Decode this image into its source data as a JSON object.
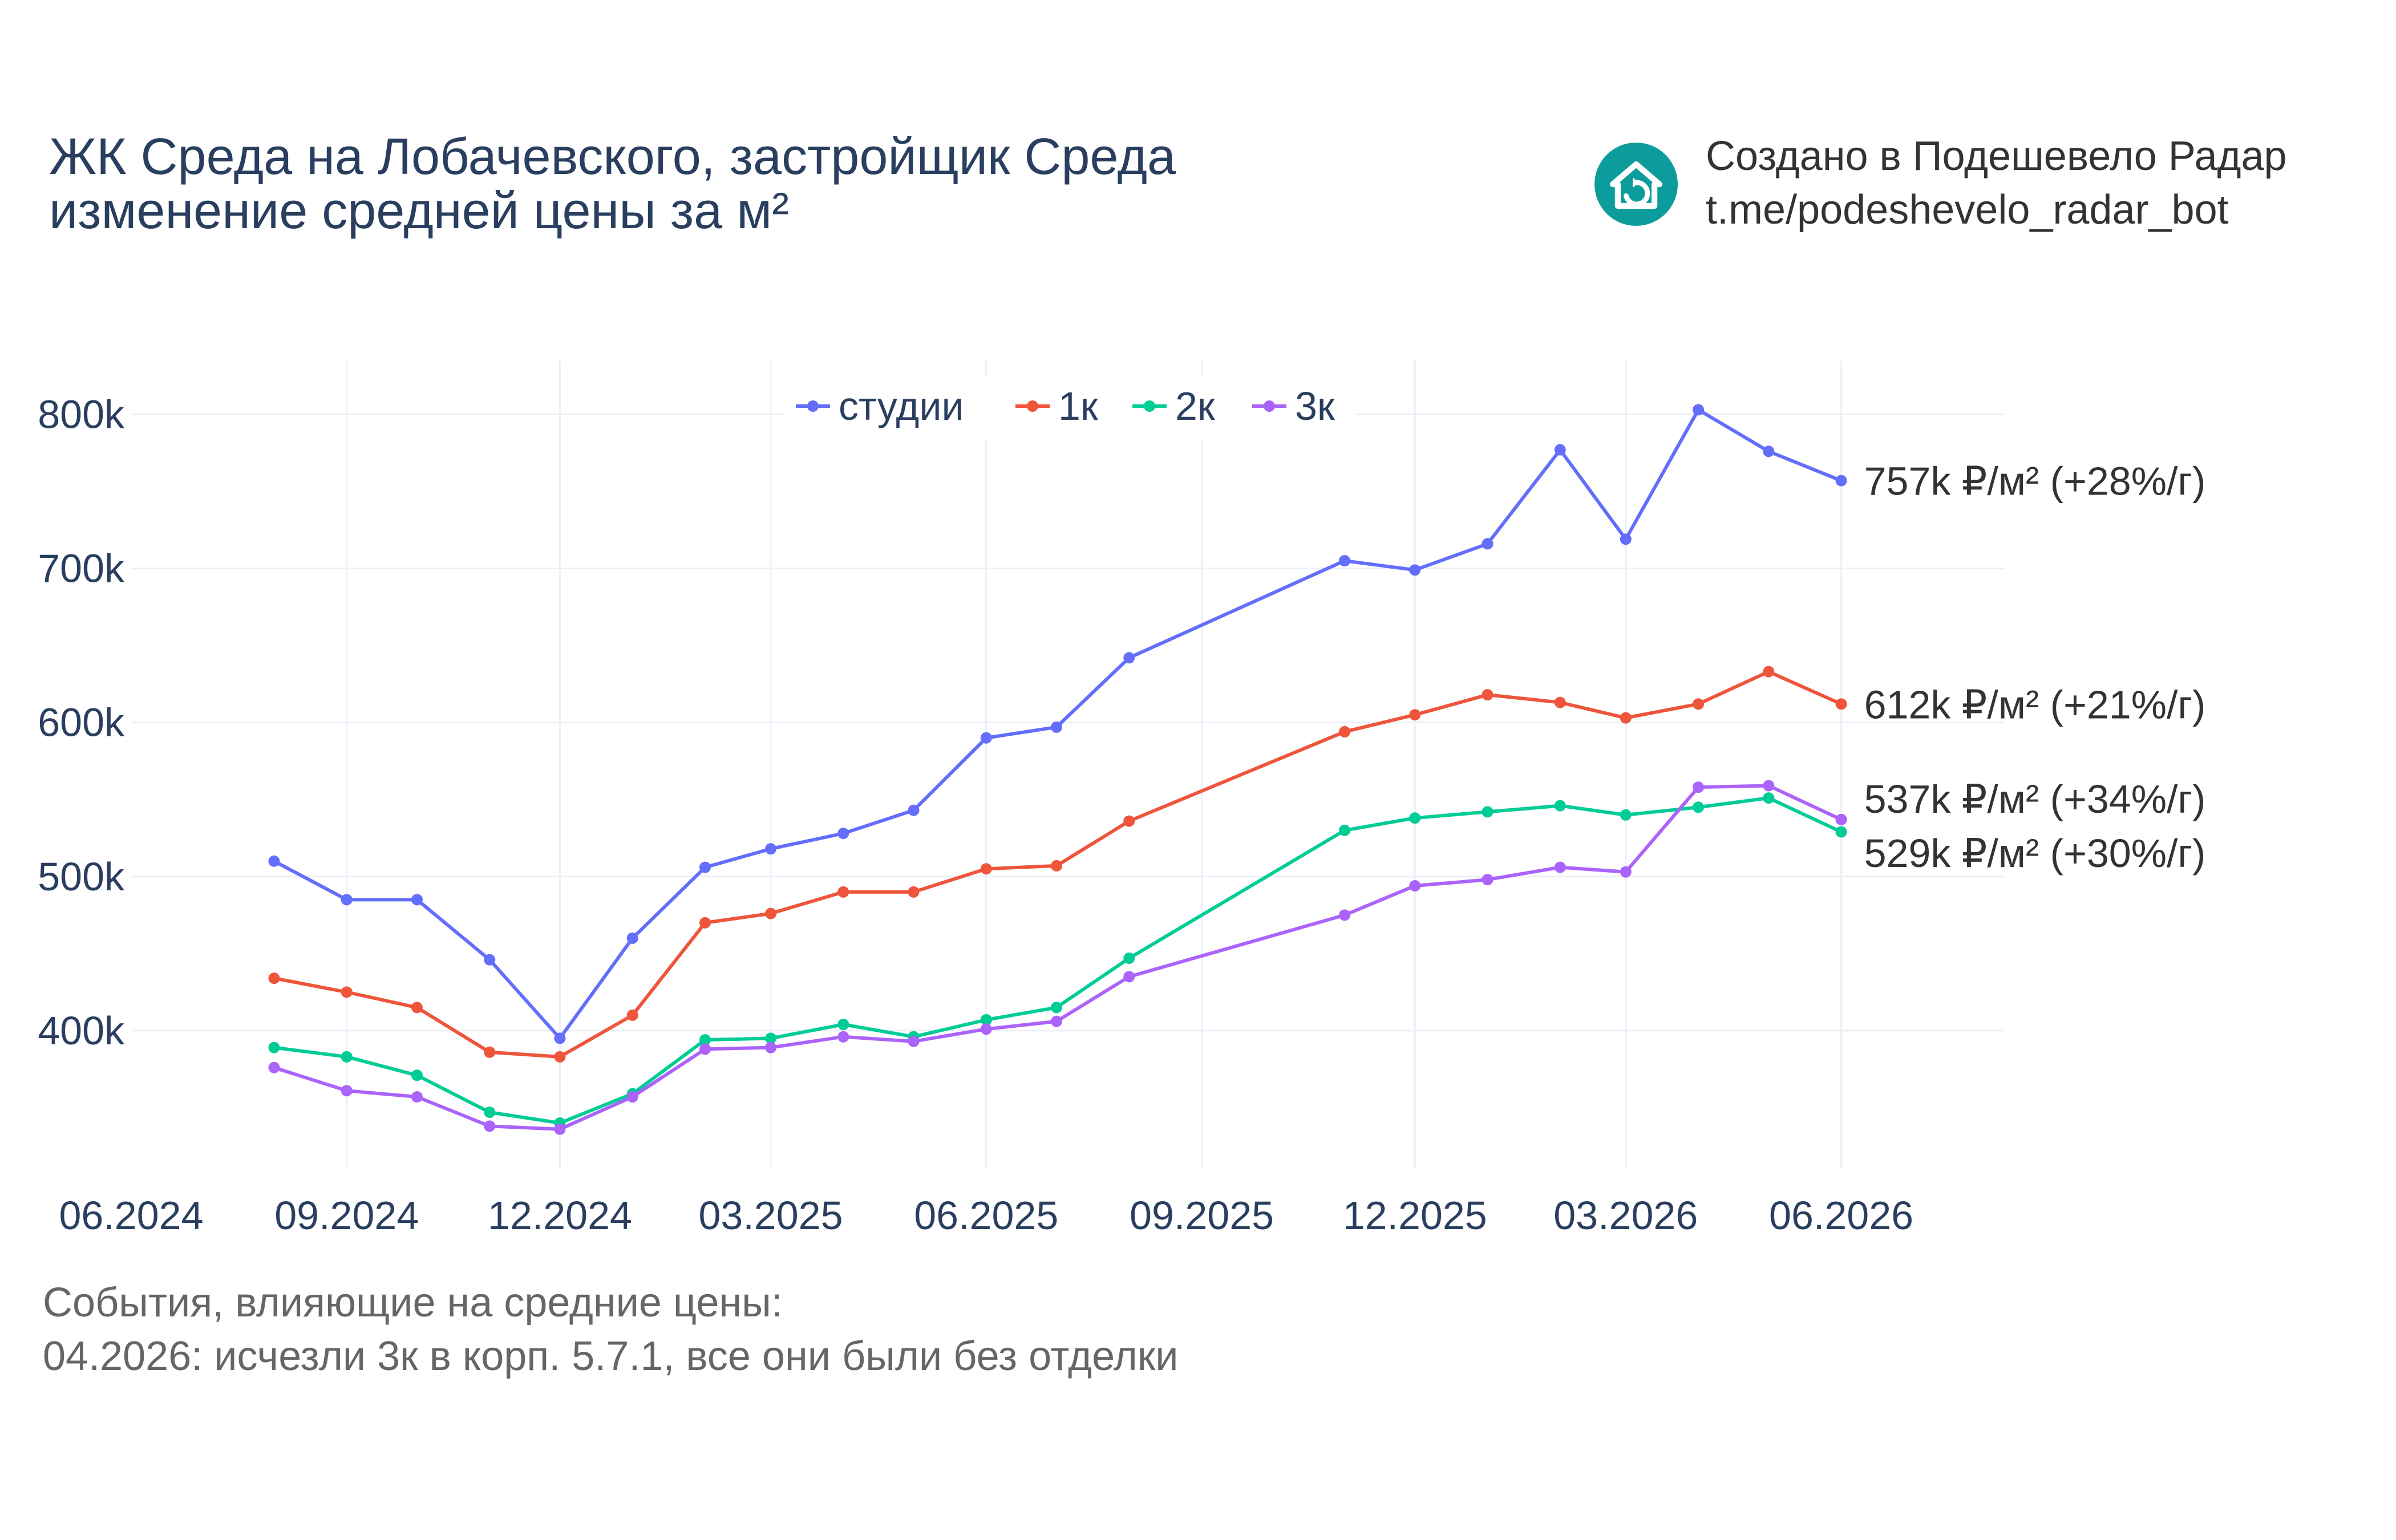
{
  "header": {
    "title_line1": "ЖК Среда на Лобачевского, застройщик Среда",
    "title_line2": "изменение средней цены за м²"
  },
  "branding": {
    "line1": "Создано в Подешевело Радар",
    "line2": "t.me/podeshevelo_radar_bot",
    "logo_icon": "house-refresh-icon",
    "logo_color": "#0d9c9c"
  },
  "events": {
    "heading": "События, влияющие на средние цены:",
    "items": [
      "04.2026: исчезли 3к в корп. 5.7.1, все они были без отделки"
    ]
  },
  "chart_data": {
    "type": "line",
    "x_axis": {
      "ticks": [
        "06.2024",
        "09.2024",
        "12.2024",
        "03.2025",
        "06.2025",
        "09.2025",
        "12.2025",
        "03.2026",
        "06.2026"
      ],
      "range": [
        "2024-06-01",
        "2026-08-10"
      ]
    },
    "y_axis": {
      "ticks": [
        "400k",
        "500k",
        "600k",
        "700k",
        "800k"
      ],
      "tick_values": [
        400000,
        500000,
        600000,
        700000,
        800000
      ],
      "range": [
        310000,
        835000
      ]
    },
    "grid": true,
    "legend_position": "top-center",
    "x": [
      "2024-08-01",
      "2024-09-01",
      "2024-10-01",
      "2024-11-01",
      "2024-12-01",
      "2025-01-01",
      "2025-02-01",
      "2025-03-01",
      "2025-04-01",
      "2025-05-01",
      "2025-06-01",
      "2025-07-01",
      "2025-08-01",
      "2025-11-01",
      "2025-12-01",
      "2026-01-01",
      "2026-02-01",
      "2026-03-01",
      "2026-04-01",
      "2026-05-01",
      "2026-06-01"
    ],
    "series": [
      {
        "name": "студии",
        "color": "#636efa",
        "end_label": "757k ₽/м² (+28%/г)",
        "values": [
          510000,
          485000,
          485000,
          446000,
          395000,
          460000,
          506000,
          518000,
          528000,
          543000,
          590000,
          597000,
          642000,
          705000,
          699000,
          716000,
          777000,
          719000,
          803000,
          776000,
          757000
        ]
      },
      {
        "name": "1к",
        "color": "#ef553b",
        "end_label": "612k ₽/м² (+21%/г)",
        "values": [
          434000,
          425000,
          415000,
          386000,
          383000,
          410000,
          470000,
          476000,
          490000,
          490000,
          505000,
          507000,
          536000,
          594000,
          605000,
          618000,
          613000,
          603000,
          612000,
          633000,
          612000
        ]
      },
      {
        "name": "2к",
        "color": "#00cc96",
        "end_label": "529k ₽/м² (+30%/г)",
        "values": [
          389000,
          383000,
          371000,
          347000,
          340000,
          359000,
          394000,
          395000,
          404000,
          396000,
          407000,
          415000,
          447000,
          530000,
          538000,
          542000,
          546000,
          540000,
          545000,
          551000,
          529000
        ]
      },
      {
        "name": "3к",
        "color": "#ab63fa",
        "end_label": "537k ₽/м² (+34%/г)",
        "values": [
          376000,
          361000,
          357000,
          338000,
          336000,
          357000,
          388000,
          389000,
          396000,
          393000,
          401000,
          406000,
          435000,
          475000,
          494000,
          498000,
          506000,
          503000,
          558000,
          559000,
          537000
        ]
      }
    ]
  }
}
